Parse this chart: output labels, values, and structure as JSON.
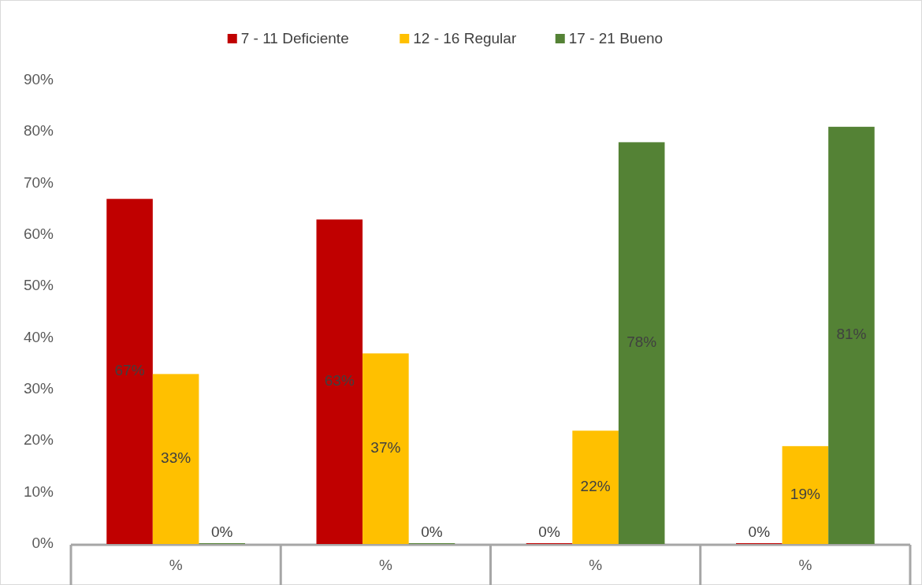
{
  "chart_data": {
    "type": "bar",
    "categories": [
      "%",
      "%",
      "%",
      "%"
    ],
    "series": [
      {
        "name": "7 - 11 Deficiente",
        "color": "#c00000",
        "values": [
          67,
          63,
          0,
          0
        ],
        "value_labels": [
          "67%",
          "63%",
          "0%",
          "0%"
        ]
      },
      {
        "name": "12 - 16 Regular",
        "color": "#ffc000",
        "values": [
          33,
          37,
          22,
          19
        ],
        "value_labels": [
          "33%",
          "37%",
          "22%",
          "19%"
        ]
      },
      {
        "name": "17 - 21 Bueno",
        "color": "#548235",
        "values": [
          0,
          0,
          78,
          81
        ],
        "value_labels": [
          "0%",
          "0%",
          "78%",
          "81%"
        ]
      }
    ],
    "ylim": [
      0,
      90
    ],
    "yticks": [
      {
        "value": 0,
        "label": "0%"
      },
      {
        "value": 10,
        "label": "10%"
      },
      {
        "value": 20,
        "label": "20%"
      },
      {
        "value": 30,
        "label": "30%"
      },
      {
        "value": 40,
        "label": "40%"
      },
      {
        "value": 50,
        "label": "50%"
      },
      {
        "value": 60,
        "label": "60%"
      },
      {
        "value": 70,
        "label": "70%"
      },
      {
        "value": 80,
        "label": "80%"
      },
      {
        "value": 90,
        "label": "90%"
      }
    ],
    "grid": false,
    "legend": "top"
  }
}
